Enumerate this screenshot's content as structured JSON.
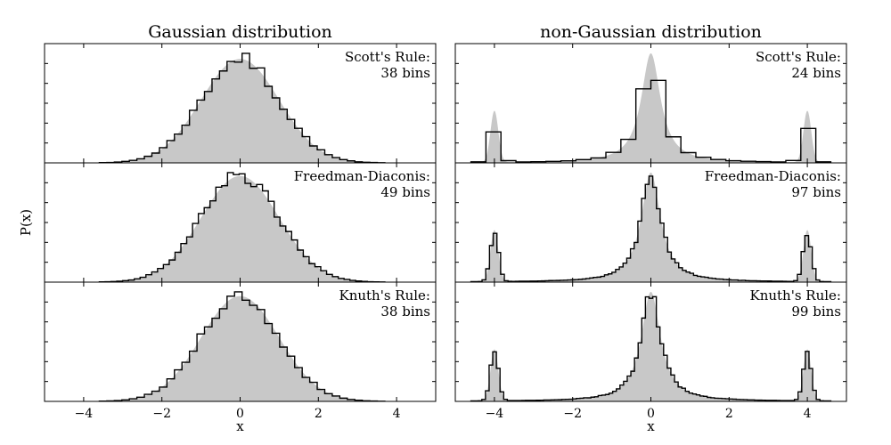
{
  "figure": {
    "ylabel": "P(x)",
    "xlabel": "x"
  },
  "chart_data": [
    {
      "type": "histogram",
      "title": "Gaussian distribution",
      "xlabel": "x",
      "ylabel": "P(x)",
      "xlim": [
        -5,
        5
      ],
      "xticks": [
        -4,
        -2,
        0,
        2,
        4
      ],
      "y_ticklabels_shown": false,
      "density_curve": "gaussian",
      "distribution": {
        "components": [
          {
            "weight": 1.0,
            "mean": 0,
            "sigma": 1.0
          }
        ]
      },
      "panels": [
        {
          "label": "Scott's Rule:",
          "bins_label": "38 bins",
          "bins": 38,
          "range": [
            -3.6,
            3.7
          ]
        },
        {
          "label": "Freedman-Diaconis:",
          "bins_label": "49 bins",
          "bins": 49,
          "range": [
            -3.6,
            3.7
          ]
        },
        {
          "label": "Knuth's Rule:",
          "bins_label": "38 bins",
          "bins": 38,
          "range": [
            -3.6,
            3.7
          ]
        }
      ]
    },
    {
      "type": "histogram",
      "title": "non-Gaussian distribution",
      "xlabel": "x",
      "xlim": [
        -5,
        5
      ],
      "xticks": [
        -4,
        -2,
        0,
        2,
        4
      ],
      "y_ticklabels_shown": false,
      "density_curve": "mixture",
      "distribution": {
        "components": [
          {
            "weight": 0.1,
            "mean": -4,
            "sigma": 0.1,
            "shape": "gaussian"
          },
          {
            "weight": 0.8,
            "mean": 0,
            "width": 0.3,
            "shape": "cauchy"
          },
          {
            "weight": 0.1,
            "mean": 4,
            "sigma": 0.1,
            "shape": "gaussian"
          }
        ]
      },
      "panels": [
        {
          "label": "Scott's Rule:",
          "bins_label": "24 bins",
          "bins": 24,
          "range": [
            -4.6,
            4.6
          ]
        },
        {
          "label": "Freedman-Diaconis:",
          "bins_label": "97 bins",
          "bins": 97,
          "range": [
            -4.6,
            4.6
          ]
        },
        {
          "label": "Knuth's Rule:",
          "bins_label": "99 bins",
          "bins": 99,
          "range": [
            -4.6,
            4.6
          ]
        }
      ]
    }
  ]
}
